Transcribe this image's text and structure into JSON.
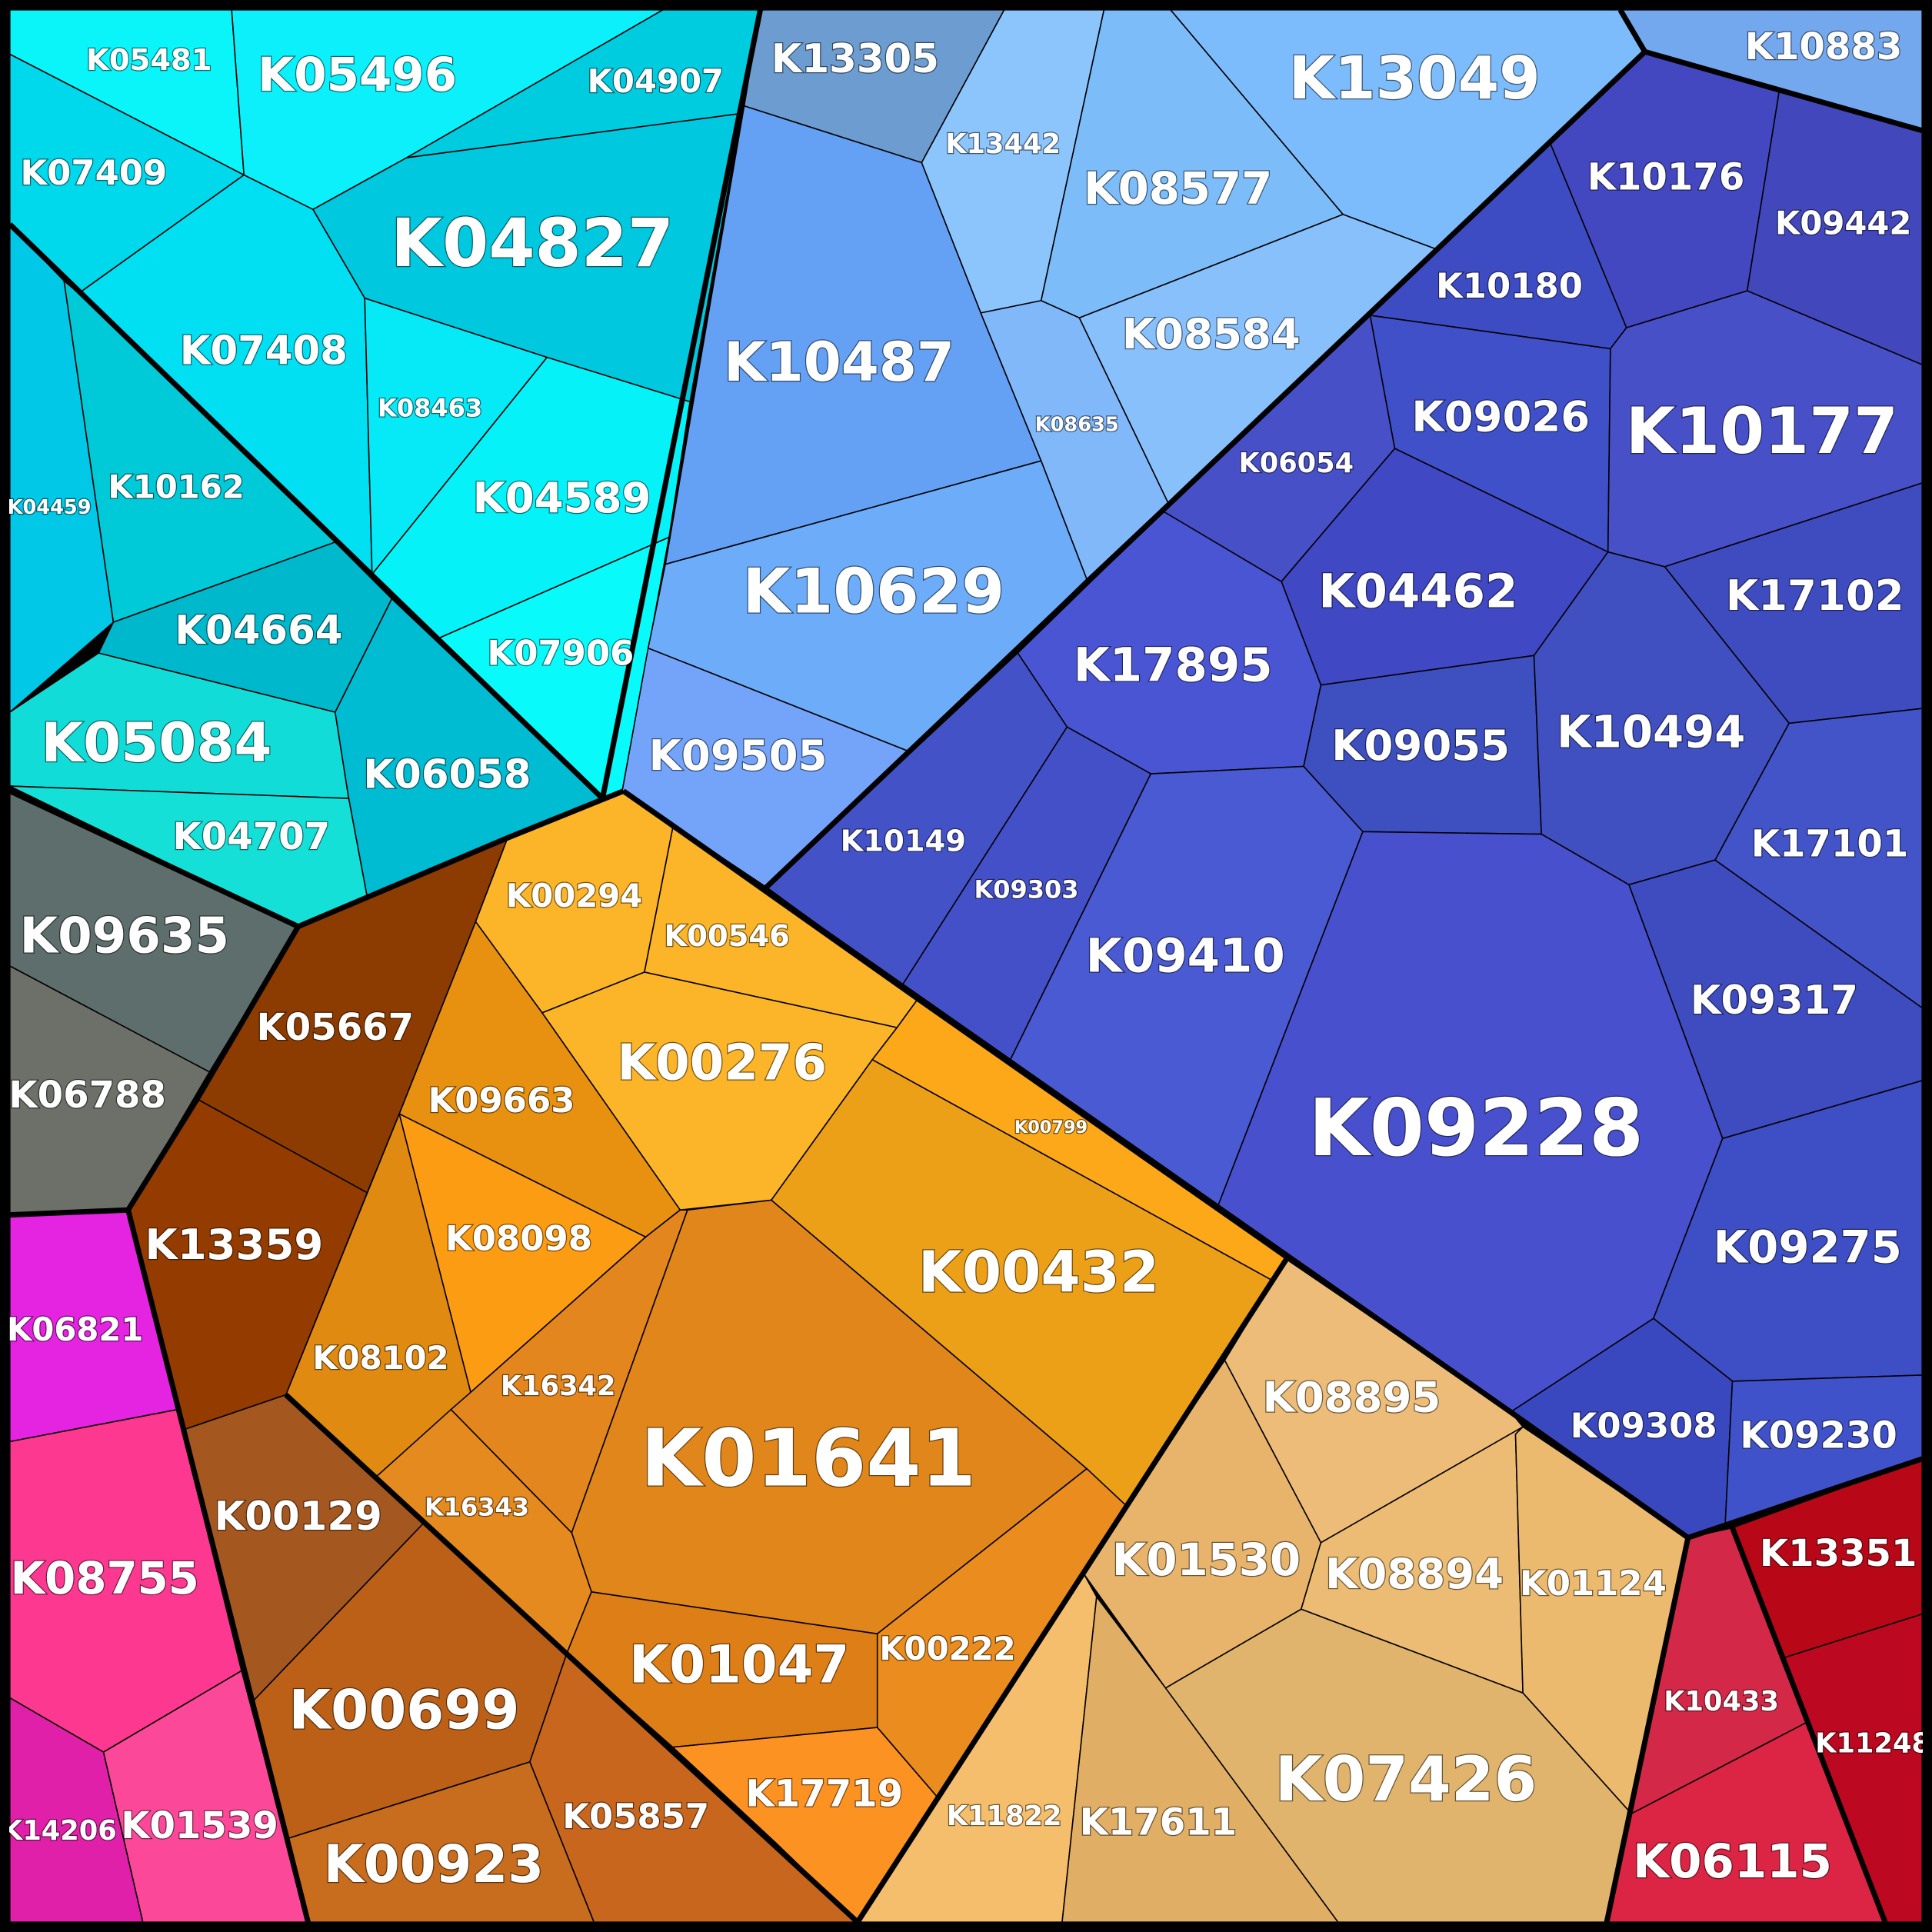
{
  "chart_data": {
    "type": "voronoi-treemap",
    "title": "",
    "groups": [
      {
        "id": "cyan",
        "color": "#00E5F5",
        "cells": [
          {
            "label": "K05481",
            "color": "#0AF5FA"
          },
          {
            "label": "K05496",
            "color": "#0BF0FA"
          },
          {
            "label": "K04907",
            "color": "#00CCE0"
          },
          {
            "label": "K07409",
            "color": "#00D8EC"
          },
          {
            "label": "K04827",
            "color": "#00C8DE"
          },
          {
            "label": "K07408",
            "color": "#00E0F2"
          },
          {
            "label": "K08463",
            "color": "#06EAF8"
          },
          {
            "label": "K04589",
            "color": "#05F2F8"
          },
          {
            "label": "K04459",
            "color": "#00C8E6"
          },
          {
            "label": "K10162",
            "color": "#00CAD8"
          },
          {
            "label": "K07906",
            "color": "#08FAFA"
          },
          {
            "label": "K04664",
            "color": "#00B8CC"
          },
          {
            "label": "K05084",
            "color": "#12DCD8"
          },
          {
            "label": "K06058",
            "color": "#00BCD2"
          },
          {
            "label": "K04707",
            "color": "#14E0D8"
          }
        ]
      },
      {
        "id": "lightblue",
        "color": "#74B4FA",
        "cells": [
          {
            "label": "K13305",
            "color": "#6C9CD0"
          },
          {
            "label": "K13442",
            "color": "#8CC4FC"
          },
          {
            "label": "K13049",
            "color": "#7CBCFC"
          },
          {
            "label": "K08577",
            "color": "#7CBCF8"
          },
          {
            "label": "K10487",
            "color": "#64A0F4"
          },
          {
            "label": "K08635",
            "color": "#80B8FA"
          },
          {
            "label": "K08584",
            "color": "#88C0FC"
          },
          {
            "label": "K10629",
            "color": "#6CACF8"
          },
          {
            "label": "K09505",
            "color": "#74A4FA"
          }
        ]
      },
      {
        "id": "indigo",
        "color": "#4650CC",
        "cells": [
          {
            "label": "K10883",
            "color": "#74A8EE"
          },
          {
            "label": "K10176",
            "color": "#4448C0"
          },
          {
            "label": "K09442",
            "color": "#4248BC"
          },
          {
            "label": "K10180",
            "color": "#3E4CC4"
          },
          {
            "label": "K06054",
            "color": "#4850C8"
          },
          {
            "label": "K09026",
            "color": "#4050C8"
          },
          {
            "label": "K10177",
            "color": "#4850C8"
          },
          {
            "label": "K04462",
            "color": "#4048C4"
          },
          {
            "label": "K17102",
            "color": "#3F4CC0"
          },
          {
            "label": "K17895",
            "color": "#4A55D4"
          },
          {
            "label": "K09055",
            "color": "#3E50C0"
          },
          {
            "label": "K10494",
            "color": "#4050C0"
          },
          {
            "label": "K10149",
            "color": "#4452C8"
          },
          {
            "label": "K09303",
            "color": "#4450C8"
          },
          {
            "label": "K17101",
            "color": "#4254C8"
          },
          {
            "label": "K09410",
            "color": "#4A5AD2"
          },
          {
            "label": "K09317",
            "color": "#3E4CC0"
          },
          {
            "label": "K09228",
            "color": "#4850CE"
          },
          {
            "label": "K09275",
            "color": "#3E4EC4"
          },
          {
            "label": "K09308",
            "color": "#3A48C0"
          },
          {
            "label": "K09230",
            "color": "#4052CA"
          }
        ]
      },
      {
        "id": "orange",
        "color": "#E89018",
        "cells": [
          {
            "label": "K00294",
            "color": "#FCB428"
          },
          {
            "label": "K00546",
            "color": "#FCB428"
          },
          {
            "label": "K00276",
            "color": "#FCB428"
          },
          {
            "label": "K00799",
            "color": "#FCA818"
          },
          {
            "label": "K09663",
            "color": "#E89010"
          },
          {
            "label": "K08098",
            "color": "#FC9C12"
          },
          {
            "label": "K00432",
            "color": "#ECA018"
          },
          {
            "label": "K08102",
            "color": "#E08A12"
          },
          {
            "label": "K16342",
            "color": "#E4861E"
          },
          {
            "label": "K01641",
            "color": "#E0861A"
          },
          {
            "label": "K16343",
            "color": "#E48A1E"
          },
          {
            "label": "K00222",
            "color": "#EA8C1E"
          },
          {
            "label": "K01047",
            "color": "#DE7E16"
          },
          {
            "label": "K17719",
            "color": "#FC9222"
          }
        ]
      },
      {
        "id": "brown",
        "color": "#8C3C00",
        "cells": [
          {
            "label": "K05667",
            "color": "#8C3C00"
          },
          {
            "label": "K13359",
            "color": "#943C00"
          },
          {
            "label": "K00129",
            "color": "#A45820"
          },
          {
            "label": "K00699",
            "color": "#BC6018"
          },
          {
            "label": "K05857",
            "color": "#C8661E"
          },
          {
            "label": "K00923",
            "color": "#C86C1E"
          }
        ]
      },
      {
        "id": "grey",
        "color": "#62706C",
        "cells": [
          {
            "label": "K09635",
            "color": "#5E6E6C"
          },
          {
            "label": "K06788",
            "color": "#6C7068"
          }
        ]
      },
      {
        "id": "tan",
        "color": "#E8B468",
        "cells": [
          {
            "label": "K08895",
            "color": "#ECBC78"
          },
          {
            "label": "K01530",
            "color": "#E8B46C"
          },
          {
            "label": "K08894",
            "color": "#ECBC74"
          },
          {
            "label": "K01124",
            "color": "#ECBA6E"
          },
          {
            "label": "K11822",
            "color": "#F4BE6C"
          },
          {
            "label": "K17611",
            "color": "#E0AE64"
          },
          {
            "label": "K07426",
            "color": "#E0B46C"
          }
        ]
      },
      {
        "id": "magenta",
        "color": "#F0309A",
        "cells": [
          {
            "label": "K06821",
            "color": "#E424E0"
          },
          {
            "label": "K08755",
            "color": "#FC3890"
          },
          {
            "label": "K14206",
            "color": "#E020A8"
          },
          {
            "label": "K01539",
            "color": "#FC4898"
          }
        ]
      },
      {
        "id": "red",
        "color": "#C8102A",
        "cells": [
          {
            "label": "K13351",
            "color": "#B80818"
          },
          {
            "label": "K10433",
            "color": "#D42848"
          },
          {
            "label": "K11248",
            "color": "#BC0820"
          },
          {
            "label": "K06115",
            "color": "#DC2444"
          }
        ]
      }
    ]
  }
}
